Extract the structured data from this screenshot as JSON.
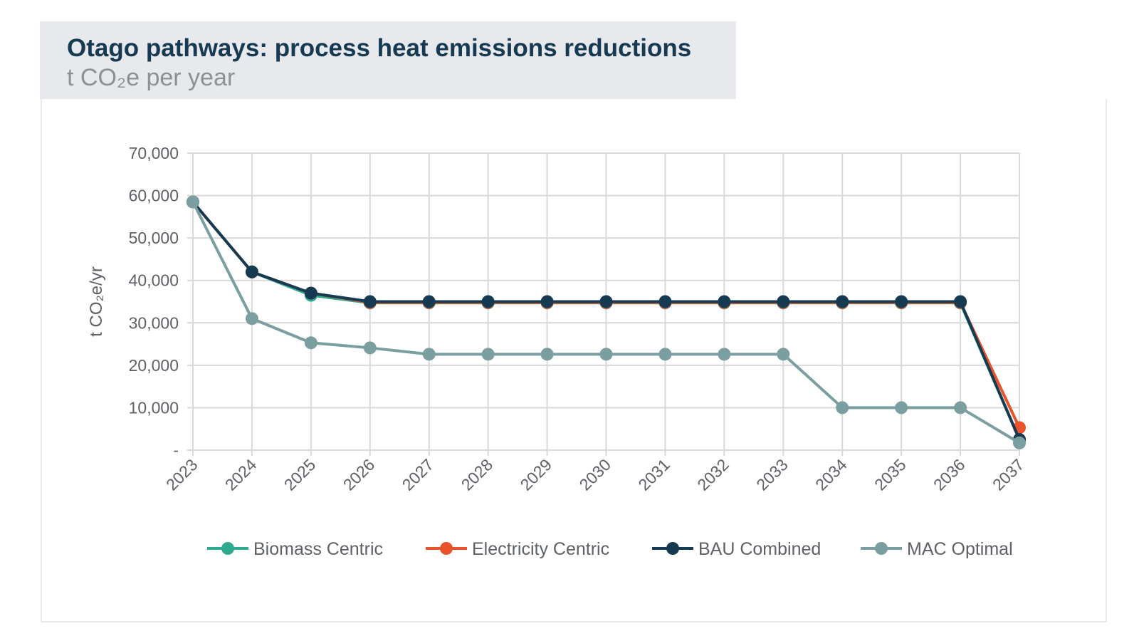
{
  "header": {
    "title": "Otago pathways: process heat emissions reductions",
    "subtitle": "t CO₂e per year"
  },
  "chart_data": {
    "type": "line",
    "title": "Otago pathways: process heat emissions reductions",
    "subtitle": "t CO₂e per year",
    "xlabel": "",
    "ylabel": "t CO₂e/yr",
    "x": [
      "2023",
      "2024",
      "2025",
      "2026",
      "2027",
      "2028",
      "2029",
      "2030",
      "2031",
      "2032",
      "2033",
      "2034",
      "2035",
      "2036",
      "2037"
    ],
    "y_ticks": [
      0,
      10000,
      20000,
      30000,
      40000,
      50000,
      60000,
      70000
    ],
    "y_tick_labels": [
      "-",
      "10,000",
      "20,000",
      "30,000",
      "40,000",
      "50,000",
      "60,000",
      "70,000"
    ],
    "ylim": [
      0,
      70000
    ],
    "grid": true,
    "legend_position": "bottom",
    "series": [
      {
        "name": "Biomass Centric",
        "color": "#2eab8e",
        "values": [
          58500,
          42000,
          36500,
          34700,
          34700,
          34700,
          34700,
          34700,
          34700,
          34700,
          34700,
          34700,
          34700,
          34700,
          2500
        ]
      },
      {
        "name": "Electricity Centric",
        "color": "#e8532b",
        "values": [
          58500,
          42000,
          37000,
          34800,
          34800,
          34800,
          34800,
          34800,
          34800,
          34800,
          34800,
          34800,
          34800,
          34800,
          5300
        ]
      },
      {
        "name": "BAU Combined",
        "color": "#163a52",
        "values": [
          58500,
          42000,
          37000,
          35000,
          35000,
          35000,
          35000,
          35000,
          35000,
          35000,
          35000,
          35000,
          35000,
          35000,
          2500
        ]
      },
      {
        "name": "MAC Optimal",
        "color": "#7b9ea1",
        "values": [
          58500,
          31000,
          25300,
          24100,
          22600,
          22600,
          22600,
          22600,
          22600,
          22600,
          22600,
          10000,
          10000,
          10000,
          1700
        ]
      }
    ]
  }
}
